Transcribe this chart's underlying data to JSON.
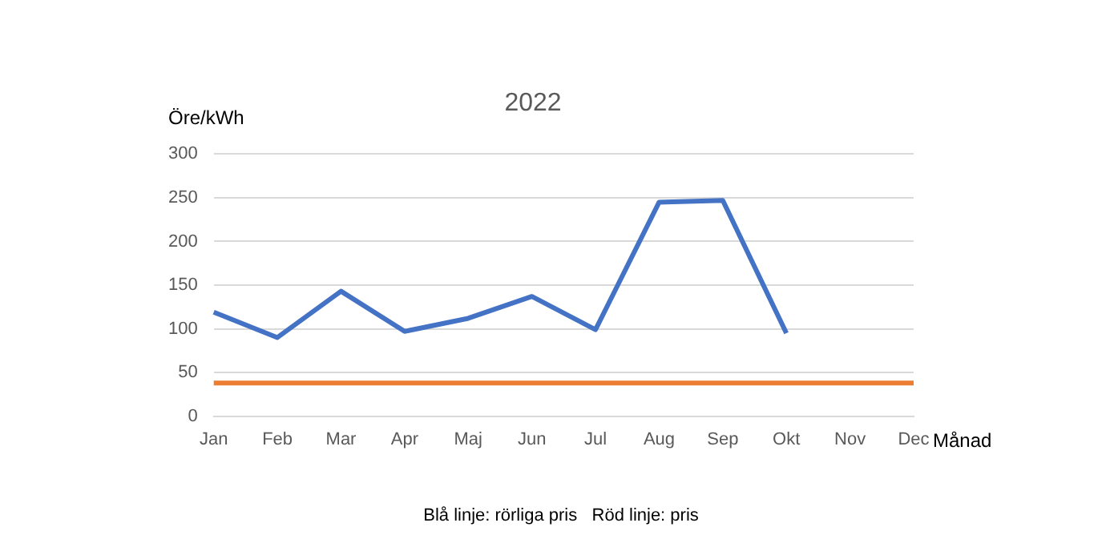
{
  "chart_data": {
    "type": "line",
    "title": "2022",
    "ylabel": "Öre/kWh",
    "xlabel": "Månad",
    "categories": [
      "Jan",
      "Feb",
      "Mar",
      "Apr",
      "Maj",
      "Jun",
      "Jul",
      "Aug",
      "Sep",
      "Okt",
      "Nov",
      "Dec"
    ],
    "series": [
      {
        "color": "#4472c4",
        "values": [
          119,
          90,
          143,
          97,
          112,
          137,
          99,
          245,
          247,
          95,
          null,
          null
        ]
      },
      {
        "color": "#ed7d31",
        "values": [
          38,
          38,
          38,
          38,
          38,
          38,
          38,
          38,
          38,
          38,
          38,
          38
        ]
      }
    ],
    "ylim": [
      0,
      300
    ],
    "yticks": [
      0,
      50,
      100,
      150,
      200,
      250,
      300
    ],
    "grid": "y",
    "legend": false,
    "marker": "none",
    "line_style": "solid",
    "annotations": [
      "Blå linje: rörliga pris   Röd linje: pris"
    ]
  }
}
